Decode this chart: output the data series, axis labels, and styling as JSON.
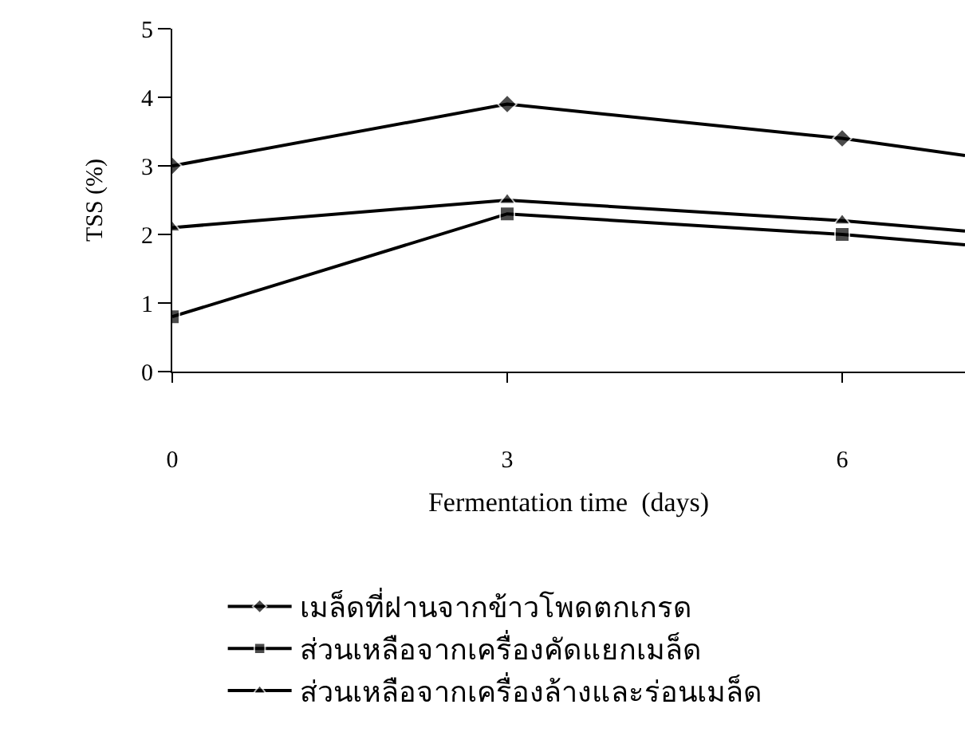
{
  "chart_data": {
    "type": "line",
    "xlabel": "Fermentation time  (days)",
    "ylabel": "TSS (%)",
    "x": [
      0,
      3,
      6,
      7.1
    ],
    "xlim": [
      0,
      7.1
    ],
    "xticks": [
      0,
      3,
      6
    ],
    "ylim": [
      0,
      5
    ],
    "yticks": [
      0,
      1,
      2,
      3,
      4,
      5
    ],
    "legend": "bottom",
    "line_style": "solid",
    "series": [
      {
        "name": "เมล็ดที่ฝานจากข้าวโพดตกเกรด",
        "color": "#000000",
        "marker": "diamond",
        "values": [
          3.0,
          3.9,
          3.4,
          3.15
        ]
      },
      {
        "name": "ส่วนเหลือจากเครื่องคัดแยกเมล็ด",
        "color": "#000000",
        "marker": "square",
        "values": [
          0.8,
          2.3,
          2.0,
          1.85
        ]
      },
      {
        "name": "ส่วนเหลือจากเครื่องล้างและร่อนเมล็ด",
        "color": "#000000",
        "marker": "triangle",
        "values": [
          2.1,
          2.5,
          2.2,
          2.05
        ]
      }
    ]
  }
}
